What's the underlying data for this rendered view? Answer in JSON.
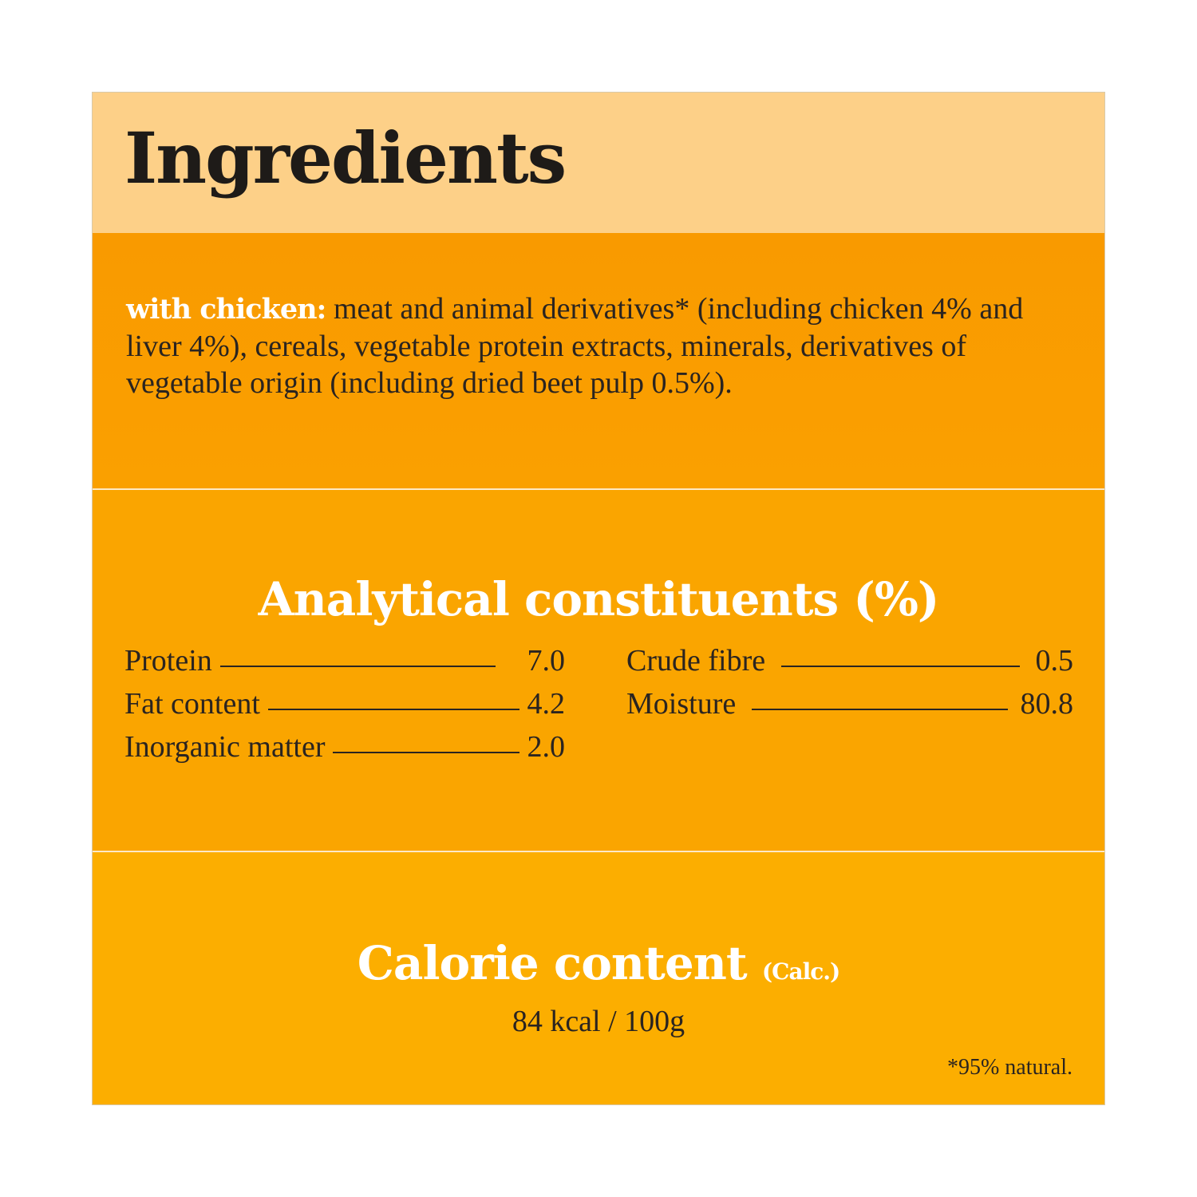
{
  "title": "Ingredients",
  "ingredients": {
    "variant_label": "with chicken:",
    "text": "meat and animal derivatives* (including chicken 4% and liver 4%), cereals, vegetable protein extracts, minerals, derivatives of vegetable origin (including dried beet pulp 0.5%)."
  },
  "analytical": {
    "heading": "Analytical constituents (%)",
    "left": [
      {
        "label": "Protein",
        "value": "7.0"
      },
      {
        "label": "Fat content",
        "value": "4.2"
      },
      {
        "label": "Inorganic matter",
        "value": "2.0"
      }
    ],
    "right": [
      {
        "label": "Crude fibre",
        "value": "0.5"
      },
      {
        "label": "Moisture",
        "value": "80.8"
      }
    ]
  },
  "calorie": {
    "heading": "Calorie content",
    "qualifier": "(Calc.)",
    "value": "84 kcal / 100g"
  },
  "footnote": "*95% natural.",
  "colors": {
    "header": "#FDD088",
    "ingredients_bg": "#F99B00",
    "analytical_bg": "#FAA500",
    "calorie_bg": "#FCAE00",
    "heading_text": "#FFFFFF"
  }
}
